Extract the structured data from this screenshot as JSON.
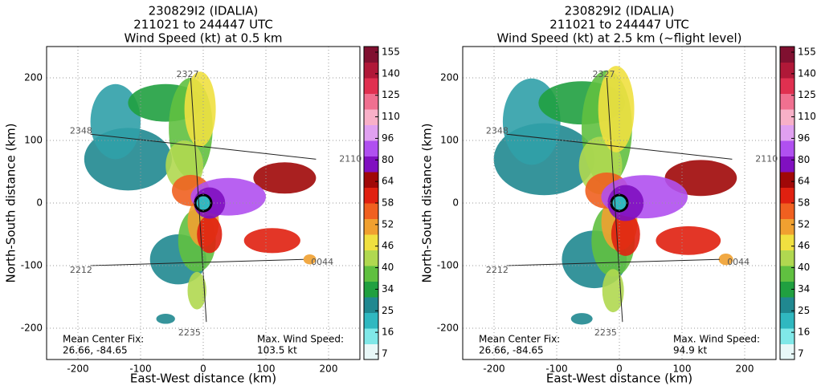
{
  "panels": [
    {
      "title": [
        "230829I2 (IDALIA)",
        "211021 to 244447 UTC",
        "Wind Speed (kt) at 0.5 km"
      ],
      "xlabel": "East-West distance (km)",
      "ylabel": "North-South distance (km)",
      "xlim": [
        -250,
        250
      ],
      "ylim": [
        -250,
        250
      ],
      "xticks": [
        -200,
        -100,
        0,
        100,
        200
      ],
      "yticks": [
        -200,
        -100,
        0,
        100,
        200
      ],
      "colorbar_ticks": [
        7,
        16,
        25,
        34,
        40,
        46,
        52,
        58,
        64,
        80,
        96,
        110,
        125,
        140,
        155
      ],
      "track_labels": [
        "2327",
        "2348",
        "2110",
        "0044",
        "2212",
        "2235"
      ],
      "center_fix": [
        "Mean Center Fix:",
        "26.66, -84.65"
      ],
      "max_wind": [
        "Max. Wind Speed:",
        "103.5 kt"
      ]
    },
    {
      "title": [
        "230829I2 (IDALIA)",
        "211021 to 244447 UTC",
        "Wind Speed (kt) at 2.5 km (~flight level)"
      ],
      "xlabel": "East-West distance (km)",
      "ylabel": "North-South distance (km)",
      "xlim": [
        -250,
        250
      ],
      "ylim": [
        -250,
        250
      ],
      "xticks": [
        -200,
        -100,
        0,
        100,
        200
      ],
      "yticks": [
        -200,
        -100,
        0,
        100,
        200
      ],
      "colorbar_ticks": [
        7,
        16,
        25,
        34,
        40,
        46,
        52,
        58,
        64,
        80,
        96,
        110,
        125,
        140,
        155
      ],
      "track_labels": [
        "2327",
        "2348",
        "2110",
        "0044",
        "2212",
        "2235"
      ],
      "center_fix": [
        "Mean Center Fix:",
        "26.66, -84.65"
      ],
      "max_wind": [
        "Max. Wind Speed:",
        "94.9 kt"
      ]
    }
  ],
  "colorbar_colors": [
    "#e8f8f8",
    "#80e8e8",
    "#30b8c0",
    "#208890",
    "#20a040",
    "#60c040",
    "#b0d850",
    "#f0e040",
    "#f0a030",
    "#f06020",
    "#e02010",
    "#a00808",
    "#8010c0",
    "#b050f0",
    "#e0a0f0",
    "#f8b0c8",
    "#f07090",
    "#e03050",
    "#b01838",
    "#801030"
  ]
}
